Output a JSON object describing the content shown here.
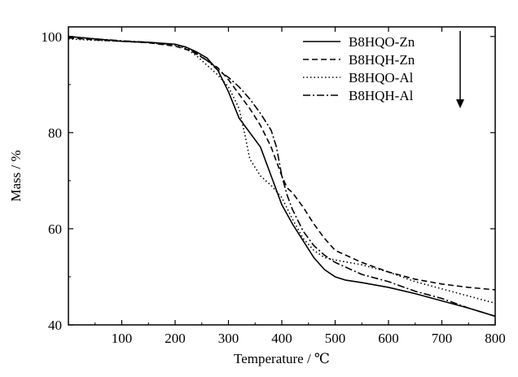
{
  "chart_data": {
    "type": "line",
    "title": "",
    "xlabel": "Temperature / ℃",
    "ylabel": "Mass / %",
    "xlim": [
      0,
      800
    ],
    "ylim": [
      40,
      102
    ],
    "xticks": [
      100,
      200,
      300,
      400,
      500,
      600,
      700,
      800
    ],
    "yticks": [
      40,
      60,
      80,
      100
    ],
    "grid": false,
    "legend_position": "top-right",
    "legend_arrow": "down",
    "series": [
      {
        "name": "B8HQO-Zn",
        "style": "solid",
        "x": [
          0,
          50,
          100,
          150,
          200,
          220,
          240,
          260,
          280,
          300,
          320,
          340,
          360,
          380,
          400,
          420,
          440,
          460,
          480,
          500,
          520,
          550,
          600,
          650,
          700,
          750,
          800
        ],
        "y": [
          100,
          99.5,
          99,
          98.8,
          98.4,
          97.8,
          96.8,
          95.5,
          93,
          88.5,
          83,
          80,
          77,
          71,
          65,
          61,
          57.5,
          54,
          51.5,
          50,
          49.3,
          48.8,
          47.8,
          46.5,
          45,
          43.5,
          41.8
        ]
      },
      {
        "name": "B8HQH-Zn",
        "style": "dashed",
        "x": [
          0,
          50,
          100,
          150,
          200,
          230,
          260,
          280,
          300,
          320,
          340,
          360,
          380,
          400,
          410,
          420,
          440,
          460,
          480,
          500,
          550,
          600,
          650,
          700,
          750,
          800
        ],
        "y": [
          99.7,
          99.3,
          99,
          98.7,
          98,
          97,
          95,
          93.5,
          91,
          88,
          85,
          81.5,
          77,
          71,
          68.5,
          67.5,
          64.5,
          61,
          58,
          55.5,
          53,
          51,
          49.5,
          48.5,
          47.8,
          47.3
        ]
      },
      {
        "name": "B8HQO-Al",
        "style": "dotted",
        "x": [
          0,
          50,
          100,
          150,
          200,
          220,
          240,
          260,
          280,
          300,
          320,
          330,
          340,
          360,
          380,
          400,
          420,
          440,
          460,
          480,
          500,
          550,
          600,
          650,
          700,
          750,
          800
        ],
        "y": [
          99.5,
          99.2,
          99,
          98.7,
          98.2,
          97.5,
          96,
          94,
          92,
          89.5,
          85,
          80,
          74.5,
          71,
          69,
          66.5,
          62,
          58,
          55.5,
          54,
          53.5,
          52.5,
          51,
          49,
          47.5,
          46,
          44.5
        ]
      },
      {
        "name": "B8HQH-Al",
        "style": "dashdot",
        "x": [
          0,
          50,
          100,
          150,
          200,
          220,
          240,
          260,
          280,
          300,
          320,
          340,
          360,
          380,
          390,
          400,
          410,
          420,
          440,
          460,
          480,
          500,
          550,
          600,
          650,
          700,
          750,
          800
        ],
        "y": [
          100,
          99.5,
          99.1,
          98.8,
          98.3,
          97.8,
          96.5,
          95,
          93,
          91.5,
          89.5,
          87,
          84,
          80.5,
          77,
          71,
          67,
          64,
          59.5,
          56.5,
          54.5,
          53,
          50.5,
          49,
          47,
          45.5,
          43.5,
          41.8
        ]
      }
    ]
  }
}
